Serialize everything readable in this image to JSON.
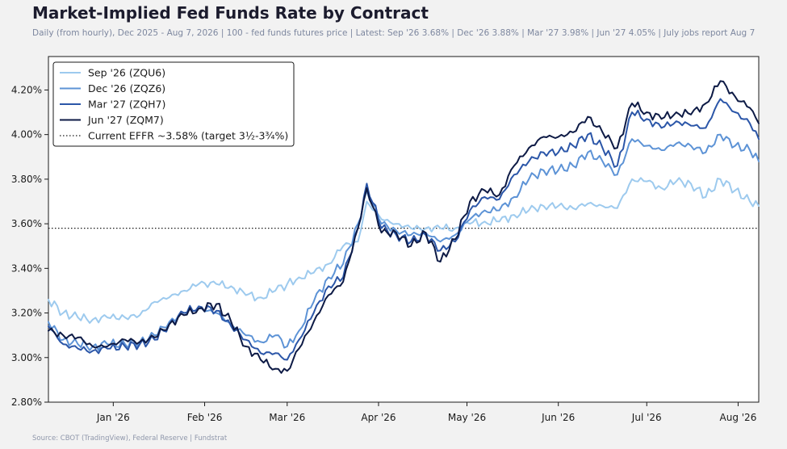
{
  "chart_data": {
    "type": "line",
    "title": "Market-Implied Fed Funds Rate by Contract",
    "subtitle": "Daily (from hourly), Dec 2025 - Aug 7, 2026  |  100 - fed funds futures price  |  Latest: Sep '26 3.68% | Dec '26 3.88% | Mar '27 3.98% | Jun '27 4.05%  |  July jobs report Aug 7",
    "source": "Source: CBOT (TradingView), Federal Reserve | Fundstrat",
    "xlabel": "",
    "ylabel": "",
    "x_range": [
      "2025-12-10",
      "2026-08-08"
    ],
    "ylim": [
      2.8,
      4.35
    ],
    "y_ticks": [
      2.8,
      3.0,
      3.2,
      3.4,
      3.6,
      3.8,
      4.0,
      4.2
    ],
    "y_tick_labels": [
      "2.80%",
      "3.00%",
      "3.20%",
      "3.40%",
      "3.60%",
      "3.80%",
      "4.00%",
      "4.20%"
    ],
    "x_ticks": [
      "2026-01-01",
      "2026-02-01",
      "2026-03-01",
      "2026-04-01",
      "2026-05-01",
      "2026-06-01",
      "2026-07-01",
      "2026-08-01"
    ],
    "x_tick_labels": [
      "Jan '26",
      "Feb '26",
      "Mar '26",
      "Apr '26",
      "May '26",
      "Jun '26",
      "Jul '26",
      "Aug '26"
    ],
    "grid": false,
    "legend_position": "top-left",
    "reference_line": {
      "y": 3.58,
      "label": "Current EFFR ~3.58% (target 3½-3¾%)",
      "style": "dotted",
      "color": "#1a1a1a"
    },
    "series": [
      {
        "name": "Sep '26 (ZQU6)",
        "color": "#9dcaee",
        "points": [
          [
            "2025-12-10",
            3.26
          ],
          [
            "2025-12-15",
            3.2
          ],
          [
            "2025-12-20",
            3.18
          ],
          [
            "2025-12-25",
            3.17
          ],
          [
            "2025-12-30",
            3.18
          ],
          [
            "2026-01-05",
            3.18
          ],
          [
            "2026-01-10",
            3.19
          ],
          [
            "2026-01-15",
            3.25
          ],
          [
            "2026-01-20",
            3.27
          ],
          [
            "2026-01-25",
            3.3
          ],
          [
            "2026-01-30",
            3.33
          ],
          [
            "2026-02-05",
            3.33
          ],
          [
            "2026-02-10",
            3.32
          ],
          [
            "2026-02-15",
            3.28
          ],
          [
            "2026-02-20",
            3.27
          ],
          [
            "2026-02-25",
            3.3
          ],
          [
            "2026-03-01",
            3.33
          ],
          [
            "2026-03-05",
            3.36
          ],
          [
            "2026-03-10",
            3.38
          ],
          [
            "2026-03-15",
            3.42
          ],
          [
            "2026-03-20",
            3.5
          ],
          [
            "2026-03-25",
            3.52
          ],
          [
            "2026-03-28",
            3.7
          ],
          [
            "2026-04-02",
            3.62
          ],
          [
            "2026-04-07",
            3.6
          ],
          [
            "2026-04-12",
            3.58
          ],
          [
            "2026-04-17",
            3.58
          ],
          [
            "2026-04-22",
            3.58
          ],
          [
            "2026-04-27",
            3.58
          ],
          [
            "2026-05-02",
            3.6
          ],
          [
            "2026-05-07",
            3.61
          ],
          [
            "2026-05-12",
            3.61
          ],
          [
            "2026-05-17",
            3.64
          ],
          [
            "2026-05-22",
            3.66
          ],
          [
            "2026-05-27",
            3.68
          ],
          [
            "2026-06-01",
            3.68
          ],
          [
            "2026-06-06",
            3.67
          ],
          [
            "2026-06-11",
            3.69
          ],
          [
            "2026-06-16",
            3.68
          ],
          [
            "2026-06-21",
            3.67
          ],
          [
            "2026-06-26",
            3.8
          ],
          [
            "2026-07-01",
            3.79
          ],
          [
            "2026-07-06",
            3.76
          ],
          [
            "2026-07-11",
            3.79
          ],
          [
            "2026-07-16",
            3.78
          ],
          [
            "2026-07-21",
            3.72
          ],
          [
            "2026-07-26",
            3.8
          ],
          [
            "2026-07-31",
            3.75
          ],
          [
            "2026-08-05",
            3.7
          ],
          [
            "2026-08-08",
            3.68
          ]
        ]
      },
      {
        "name": "Dec '26 (ZQZ6)",
        "color": "#5d93d6",
        "points": [
          [
            "2025-12-10",
            3.16
          ],
          [
            "2025-12-15",
            3.08
          ],
          [
            "2025-12-20",
            3.06
          ],
          [
            "2025-12-25",
            3.05
          ],
          [
            "2025-12-30",
            3.06
          ],
          [
            "2026-01-05",
            3.06
          ],
          [
            "2026-01-10",
            3.07
          ],
          [
            "2026-01-15",
            3.1
          ],
          [
            "2026-01-20",
            3.16
          ],
          [
            "2026-01-25",
            3.2
          ],
          [
            "2026-01-30",
            3.22
          ],
          [
            "2026-02-05",
            3.2
          ],
          [
            "2026-02-10",
            3.15
          ],
          [
            "2026-02-15",
            3.1
          ],
          [
            "2026-02-20",
            3.07
          ],
          [
            "2026-02-25",
            3.1
          ],
          [
            "2026-03-01",
            3.05
          ],
          [
            "2026-03-05",
            3.12
          ],
          [
            "2026-03-10",
            3.25
          ],
          [
            "2026-03-15",
            3.36
          ],
          [
            "2026-03-20",
            3.42
          ],
          [
            "2026-03-25",
            3.6
          ],
          [
            "2026-03-28",
            3.75
          ],
          [
            "2026-04-02",
            3.6
          ],
          [
            "2026-04-07",
            3.57
          ],
          [
            "2026-04-12",
            3.55
          ],
          [
            "2026-04-17",
            3.56
          ],
          [
            "2026-04-22",
            3.52
          ],
          [
            "2026-04-27",
            3.55
          ],
          [
            "2026-05-02",
            3.62
          ],
          [
            "2026-05-07",
            3.66
          ],
          [
            "2026-05-12",
            3.66
          ],
          [
            "2026-05-17",
            3.72
          ],
          [
            "2026-05-22",
            3.8
          ],
          [
            "2026-05-27",
            3.84
          ],
          [
            "2026-06-01",
            3.84
          ],
          [
            "2026-06-06",
            3.86
          ],
          [
            "2026-06-11",
            3.92
          ],
          [
            "2026-06-16",
            3.88
          ],
          [
            "2026-06-21",
            3.82
          ],
          [
            "2026-06-26",
            3.98
          ],
          [
            "2026-07-01",
            3.95
          ],
          [
            "2026-07-06",
            3.93
          ],
          [
            "2026-07-11",
            3.96
          ],
          [
            "2026-07-16",
            3.95
          ],
          [
            "2026-07-21",
            3.92
          ],
          [
            "2026-07-26",
            4.0
          ],
          [
            "2026-07-31",
            3.95
          ],
          [
            "2026-08-05",
            3.93
          ],
          [
            "2026-08-08",
            3.88
          ]
        ]
      },
      {
        "name": "Mar '27 (ZQH7)",
        "color": "#2b56a8",
        "points": [
          [
            "2025-12-10",
            3.14
          ],
          [
            "2025-12-15",
            3.06
          ],
          [
            "2025-12-20",
            3.04
          ],
          [
            "2025-12-25",
            3.03
          ],
          [
            "2025-12-30",
            3.04
          ],
          [
            "2026-01-05",
            3.05
          ],
          [
            "2026-01-10",
            3.06
          ],
          [
            "2026-01-15",
            3.08
          ],
          [
            "2026-01-20",
            3.15
          ],
          [
            "2026-01-25",
            3.2
          ],
          [
            "2026-01-30",
            3.23
          ],
          [
            "2026-02-05",
            3.21
          ],
          [
            "2026-02-10",
            3.14
          ],
          [
            "2026-02-15",
            3.08
          ],
          [
            "2026-02-20",
            3.02
          ],
          [
            "2026-02-25",
            3.02
          ],
          [
            "2026-03-01",
            2.99
          ],
          [
            "2026-03-05",
            3.08
          ],
          [
            "2026-03-10",
            3.2
          ],
          [
            "2026-03-15",
            3.32
          ],
          [
            "2026-03-20",
            3.36
          ],
          [
            "2026-03-25",
            3.58
          ],
          [
            "2026-03-28",
            3.78
          ],
          [
            "2026-04-02",
            3.58
          ],
          [
            "2026-04-07",
            3.55
          ],
          [
            "2026-04-12",
            3.52
          ],
          [
            "2026-04-17",
            3.55
          ],
          [
            "2026-04-22",
            3.48
          ],
          [
            "2026-04-27",
            3.52
          ],
          [
            "2026-05-02",
            3.66
          ],
          [
            "2026-05-07",
            3.72
          ],
          [
            "2026-05-12",
            3.71
          ],
          [
            "2026-05-17",
            3.82
          ],
          [
            "2026-05-22",
            3.88
          ],
          [
            "2026-05-27",
            3.92
          ],
          [
            "2026-06-01",
            3.92
          ],
          [
            "2026-06-06",
            3.95
          ],
          [
            "2026-06-11",
            4.0
          ],
          [
            "2026-06-16",
            3.94
          ],
          [
            "2026-06-21",
            3.86
          ],
          [
            "2026-06-26",
            4.1
          ],
          [
            "2026-07-01",
            4.07
          ],
          [
            "2026-07-06",
            4.03
          ],
          [
            "2026-07-11",
            4.06
          ],
          [
            "2026-07-16",
            4.04
          ],
          [
            "2026-07-21",
            4.03
          ],
          [
            "2026-07-26",
            4.16
          ],
          [
            "2026-07-31",
            4.1
          ],
          [
            "2026-08-05",
            4.05
          ],
          [
            "2026-08-08",
            3.98
          ]
        ]
      },
      {
        "name": "Jun '27 (ZQM7)",
        "color": "#0d1a45",
        "points": [
          [
            "2025-12-10",
            3.12
          ],
          [
            "2025-12-15",
            3.1
          ],
          [
            "2025-12-20",
            3.09
          ],
          [
            "2025-12-25",
            3.05
          ],
          [
            "2025-12-30",
            3.05
          ],
          [
            "2026-01-05",
            3.08
          ],
          [
            "2026-01-10",
            3.07
          ],
          [
            "2026-01-15",
            3.09
          ],
          [
            "2026-01-20",
            3.15
          ],
          [
            "2026-01-25",
            3.19
          ],
          [
            "2026-01-30",
            3.22
          ],
          [
            "2026-02-05",
            3.24
          ],
          [
            "2026-02-10",
            3.16
          ],
          [
            "2026-02-15",
            3.05
          ],
          [
            "2026-02-20",
            2.99
          ],
          [
            "2026-02-25",
            2.95
          ],
          [
            "2026-03-01",
            2.94
          ],
          [
            "2026-03-05",
            3.04
          ],
          [
            "2026-03-10",
            3.16
          ],
          [
            "2026-03-15",
            3.28
          ],
          [
            "2026-03-20",
            3.34
          ],
          [
            "2026-03-25",
            3.58
          ],
          [
            "2026-03-28",
            3.76
          ],
          [
            "2026-04-02",
            3.56
          ],
          [
            "2026-04-07",
            3.56
          ],
          [
            "2026-04-12",
            3.5
          ],
          [
            "2026-04-17",
            3.56
          ],
          [
            "2026-04-22",
            3.43
          ],
          [
            "2026-04-27",
            3.53
          ],
          [
            "2026-05-02",
            3.7
          ],
          [
            "2026-05-07",
            3.75
          ],
          [
            "2026-05-12",
            3.73
          ],
          [
            "2026-05-17",
            3.86
          ],
          [
            "2026-05-22",
            3.94
          ],
          [
            "2026-05-27",
            3.99
          ],
          [
            "2026-06-01",
            3.99
          ],
          [
            "2026-06-06",
            4.01
          ],
          [
            "2026-06-11",
            4.08
          ],
          [
            "2026-06-16",
            4.01
          ],
          [
            "2026-06-21",
            3.94
          ],
          [
            "2026-06-26",
            4.14
          ],
          [
            "2026-07-01",
            4.1
          ],
          [
            "2026-07-06",
            4.07
          ],
          [
            "2026-07-11",
            4.1
          ],
          [
            "2026-07-16",
            4.09
          ],
          [
            "2026-07-21",
            4.14
          ],
          [
            "2026-07-26",
            4.24
          ],
          [
            "2026-07-31",
            4.17
          ],
          [
            "2026-08-05",
            4.12
          ],
          [
            "2026-08-08",
            4.05
          ]
        ]
      }
    ]
  }
}
